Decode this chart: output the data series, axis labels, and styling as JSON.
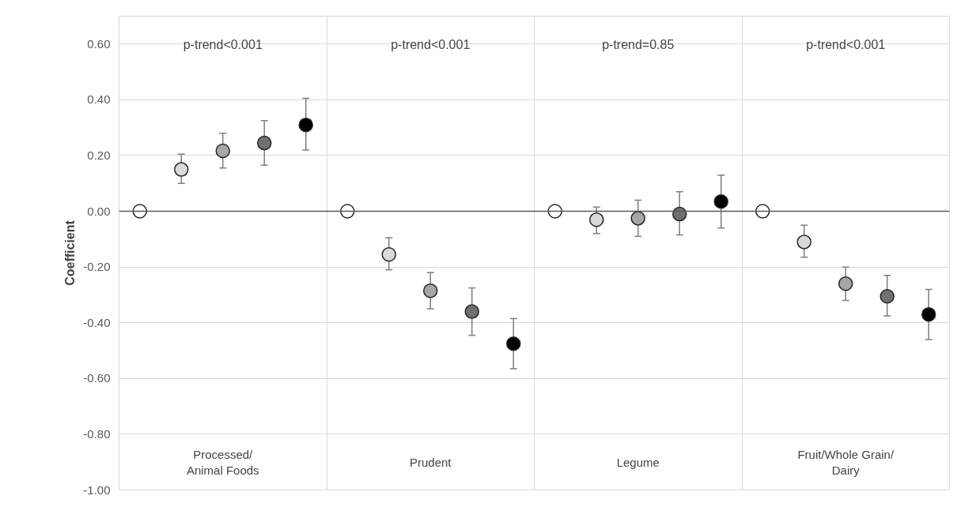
{
  "chart_data": {
    "type": "scatter",
    "ylabel": "Coefficient",
    "categories": [
      "Processed/Animal Foods",
      "Prudent",
      "Legume",
      "Fruit/Whole Grain/Dairy"
    ],
    "series": [
      {
        "color": "#ffffff",
        "values": [
          0.0,
          0.0,
          0.0,
          0.0
        ]
      },
      {
        "color": "#d9d9d9",
        "values": [
          0.15,
          -0.155,
          -0.03,
          -0.11
        ],
        "errors": [
          [
            0.1,
            0.205
          ],
          [
            -0.21,
            -0.095
          ],
          [
            -0.08,
            0.015
          ],
          [
            -0.165,
            -0.05
          ]
        ]
      },
      {
        "color": "#a6a6a6",
        "values": [
          0.217,
          -0.285,
          -0.025,
          -0.26
        ],
        "errors": [
          [
            0.155,
            0.28
          ],
          [
            -0.35,
            -0.22
          ],
          [
            -0.09,
            0.04
          ],
          [
            -0.32,
            -0.2
          ]
        ]
      },
      {
        "color": "#707070",
        "values": [
          0.245,
          -0.36,
          -0.01,
          -0.305
        ],
        "errors": [
          [
            0.165,
            0.325
          ],
          [
            -0.445,
            -0.275
          ],
          [
            -0.085,
            0.07
          ],
          [
            -0.375,
            -0.23
          ]
        ]
      },
      {
        "color": "#000000",
        "values": [
          0.31,
          -0.475,
          0.035,
          -0.37
        ],
        "errors": [
          [
            0.22,
            0.405
          ],
          [
            -0.565,
            -0.385
          ],
          [
            -0.06,
            0.13
          ],
          [
            -0.46,
            -0.28
          ]
        ]
      }
    ],
    "annotations": [
      "p-trend<0.001",
      "p-trend<0.001",
      "p-trend=0.85",
      "p-trend<0.001"
    ],
    "ylim": [
      -1.0,
      0.7
    ],
    "yticks": [
      {
        "value": 0.6,
        "label": "0.60"
      },
      {
        "value": 0.4,
        "label": "0.40"
      },
      {
        "value": 0.2,
        "label": "0.20"
      },
      {
        "value": 0.0,
        "label": "0.00"
      },
      {
        "value": -0.2,
        "label": "-0.20"
      },
      {
        "value": -0.4,
        "label": "-0.40"
      },
      {
        "value": -0.6,
        "label": "-0.60"
      },
      {
        "value": -0.8,
        "label": "-0.80"
      },
      {
        "value": -1.0,
        "label": "-1.00"
      }
    ],
    "ref_lines": [
      {
        "axis": "y",
        "value": 0.0,
        "color": "#595959"
      }
    ],
    "grid": true,
    "marker": "circle",
    "tick_labels": "y"
  }
}
